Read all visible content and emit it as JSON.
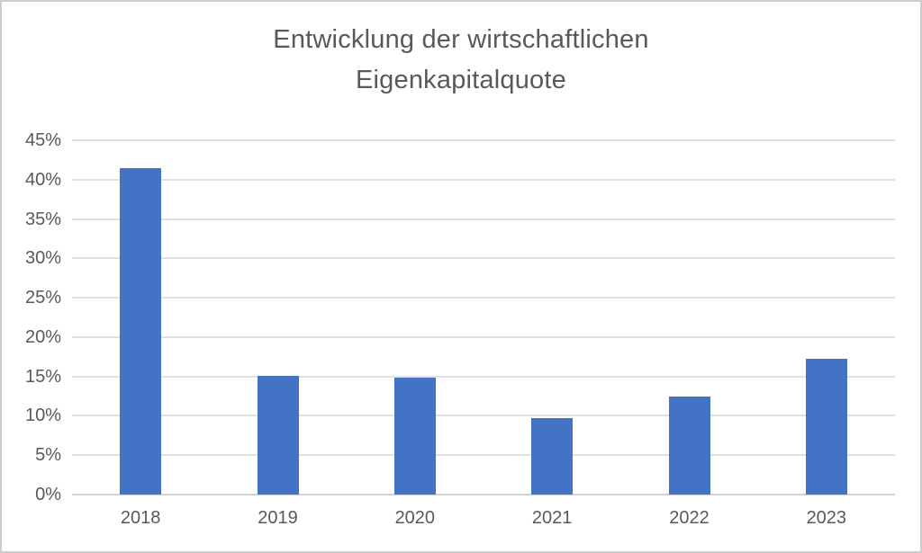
{
  "chart_data": {
    "type": "bar",
    "title": "Entwicklung der wirtschaftlichen Eigenkapitalquote",
    "title_line1": "Entwicklung der wirtschaftlichen",
    "title_line2": "Eigenkapitalquote",
    "categories": [
      "2018",
      "2019",
      "2020",
      "2021",
      "2022",
      "2023"
    ],
    "values": [
      41.5,
      15.1,
      14.9,
      9.7,
      12.4,
      17.3
    ],
    "unit": "%",
    "xlabel": "",
    "ylabel": "",
    "ylim": [
      0,
      45
    ],
    "ytick_step": 5,
    "ytick_labels": [
      "0%",
      "5%",
      "10%",
      "15%",
      "20%",
      "25%",
      "30%",
      "35%",
      "40%",
      "45%"
    ],
    "grid": true,
    "legend": false,
    "colors": {
      "bar": "#4472C4",
      "text": "#595959",
      "gridline": "#E0E0E0",
      "axis_line": "#D2D2D2",
      "background": "#FFFFFF",
      "frame_border": "#CDCDCD"
    }
  }
}
